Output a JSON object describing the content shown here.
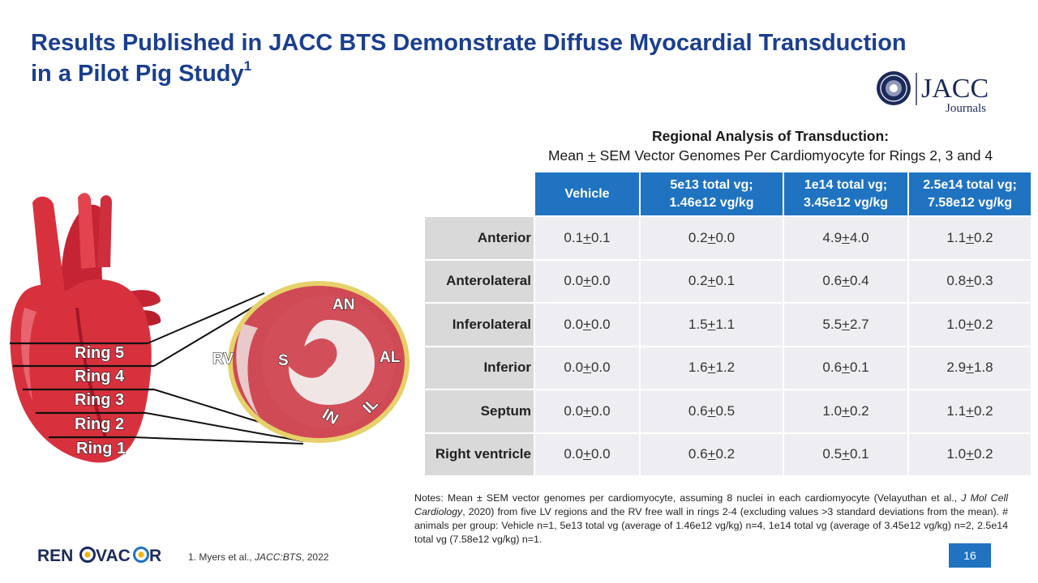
{
  "title": {
    "line1": "Results Published in JACC BTS Demonstrate Diffuse Myocardial Transduction",
    "line2": "in a Pilot Pig Study",
    "footnote_ref": "1"
  },
  "jacc_logo": {
    "brand": "JACC",
    "sub": "Journals"
  },
  "table_caption": {
    "line1": "Regional Analysis of Transduction:",
    "line2_pre": "Mean ",
    "line2_plus": "+",
    "line2_post": " SEM Vector Genomes Per Cardiomyocyte for Rings 2, 3 and 4"
  },
  "table": {
    "headers": [
      {
        "line1": "Vehicle",
        "line2": ""
      },
      {
        "line1": "5e13 total vg;",
        "line2": "1.46e12 vg/kg"
      },
      {
        "line1": "1e14 total vg;",
        "line2": "3.45e12 vg/kg"
      },
      {
        "line1": "2.5e14 total vg;",
        "line2": "7.58e12 vg/kg"
      }
    ],
    "rows": [
      {
        "label": "Anterior",
        "cells": [
          [
            "0.1",
            "0.1"
          ],
          [
            "0.2",
            "0.0"
          ],
          [
            "4.9",
            "4.0"
          ],
          [
            "1.1",
            "0.2"
          ]
        ]
      },
      {
        "label": "Anterolateral",
        "cells": [
          [
            "0.0",
            "0.0"
          ],
          [
            "0.2",
            "0.1"
          ],
          [
            "0.6",
            "0.4"
          ],
          [
            "0.8",
            "0.3"
          ]
        ]
      },
      {
        "label": "Inferolateral",
        "cells": [
          [
            "0.0",
            "0.0"
          ],
          [
            "1.5",
            "1.1"
          ],
          [
            "5.5",
            "2.7"
          ],
          [
            "1.0",
            "0.2"
          ]
        ]
      },
      {
        "label": "Inferior",
        "cells": [
          [
            "0.0",
            "0.0"
          ],
          [
            "1.6",
            "1.2"
          ],
          [
            "0.6",
            "0.1"
          ],
          [
            "2.9",
            "1.8"
          ]
        ]
      },
      {
        "label": "Septum",
        "cells": [
          [
            "0.0",
            "0.0"
          ],
          [
            "0.6",
            "0.5"
          ],
          [
            "1.0",
            "0.2"
          ],
          [
            "1.1",
            "0.2"
          ]
        ]
      },
      {
        "label": "Right ventricle",
        "cells": [
          [
            "0.0",
            "0.0"
          ],
          [
            "0.6",
            "0.2"
          ],
          [
            "0.5",
            "0.1"
          ],
          [
            "1.0",
            "0.2"
          ]
        ]
      }
    ]
  },
  "heart": {
    "rings": [
      "Ring 5",
      "Ring 4",
      "Ring 3",
      "Ring 2",
      "Ring 1"
    ],
    "regions": {
      "an": "AN",
      "al": "AL",
      "il": "IL",
      "in": "IN",
      "s": "S",
      "rv": "RV"
    }
  },
  "notes": {
    "t1": "Notes: Mean ± SEM vector genomes per cardiomyocyte, assuming 8 nuclei in each cardiomyocyte (Velayuthan et al., ",
    "journal": "J Mol Cell Cardiology",
    "t2": ", 2020) from five LV regions and the RV free wall in rings 2-4 (excluding values >3 standard deviations from the mean). # animals per group: Vehicle n=1, 5e13 total vg (average of 1.46e12 vg/kg) n=4, 1e14 total vg (average of 3.45e12 vg/kg) n=2, 2.5e14 total vg (7.58e12 vg/kg) n=1."
  },
  "footer": {
    "logo_left": "REN",
    "logo_mid": "VAC",
    "logo_right": "R",
    "footnote_pre": "1. Myers et al., ",
    "footnote_journal": "JACC:BTS",
    "footnote_post": ", 2022",
    "page": "16"
  },
  "colors": {
    "title": "#1a3f8f",
    "header": "#1f73c1",
    "row_label": "#d9d9d9",
    "cell": "#eeeef2",
    "heart": "#d8313e"
  }
}
